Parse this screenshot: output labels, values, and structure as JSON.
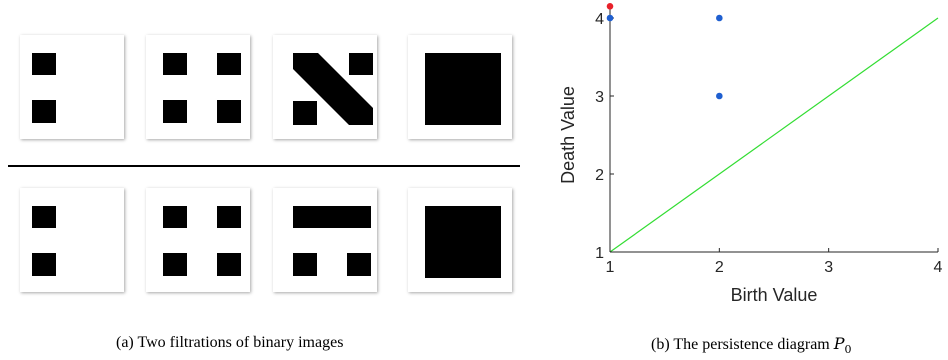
{
  "captions": {
    "left": "(a) Two filtrations of binary images",
    "right": "(b) The persistence diagram"
  },
  "math": {
    "P": "P",
    "sub": "0"
  },
  "filtrations": {
    "count": 2,
    "frames_per_filtration": 4,
    "pixel_value_black": 1,
    "pixel_value_white": 0
  },
  "chart_data": {
    "type": "scatter",
    "title": "",
    "xlabel": "Birth Value",
    "ylabel": "Death Value",
    "xlim": [
      1,
      4
    ],
    "ylim": [
      1,
      4
    ],
    "xticks": [
      "1",
      "2",
      "3",
      "4"
    ],
    "yticks": [
      "1",
      "2",
      "3",
      "4"
    ],
    "grid": false,
    "diagonal": {
      "from": [
        1,
        1
      ],
      "to": [
        4,
        4
      ],
      "color": "#33dd33"
    },
    "points": [
      {
        "x": 1,
        "y": 4,
        "color": "#1f5fd0"
      },
      {
        "x": 2,
        "y": 4,
        "color": "#1f5fd0"
      },
      {
        "x": 2,
        "y": 3,
        "color": "#1f5fd0"
      },
      {
        "x": 1,
        "y": 4.15,
        "color": "#e8212a"
      }
    ]
  }
}
